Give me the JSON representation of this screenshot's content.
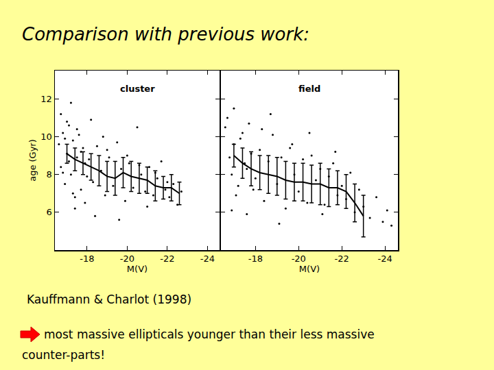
{
  "title": "Comparison with previous work:",
  "citation": "Kauffmann & Charlot (1998)",
  "conclusion": [
    "most massive ellipticals younger than their less massive",
    "counter-parts!"
  ],
  "chart_data": [
    {
      "type": "scatter",
      "title": "cluster",
      "x_label": "M(V)",
      "y_label": "age (Gyr)",
      "xlim": [
        -16.4,
        -24.6
      ],
      "ylim": [
        4,
        13.5
      ],
      "xticks": [
        -18,
        -20,
        -22,
        -24
      ],
      "yticks": [
        6,
        8,
        10,
        12
      ],
      "grid": false,
      "tick_labels": true,
      "series": [
        {
          "type": "scatter",
          "marker": "dot",
          "color": "#000000",
          "x": [
            -16.6,
            -16.7,
            -16.8,
            -16.9,
            -17.0,
            -17.1,
            -17.2,
            -17.3,
            -17.4,
            -17.5,
            -17.6,
            -17.7,
            -17.8,
            -17.9,
            -18.0,
            -16.7,
            -16.9,
            -17.1,
            -17.3,
            -17.5,
            -17.7,
            -17.9,
            -18.1,
            -18.3,
            -18.5,
            -18.7,
            -18.9,
            -19.1,
            -19.3,
            -19.5,
            -19.7,
            -19.9,
            -20.1,
            -20.3,
            -20.5,
            -20.7,
            -20.9,
            -21.1,
            -21.3,
            -21.5,
            -21.7,
            -21.9,
            -22.1,
            -22.3,
            -22.5,
            -22.7,
            -17.2,
            -18.2,
            -19.0,
            -19.6,
            -20.0,
            -20.6,
            -21.0,
            -21.4,
            -22.0,
            -17.4,
            -18.4,
            -18.8,
            -16.8,
            -17.0
          ],
          "values": [
            9.6,
            8.4,
            10.2,
            7.5,
            9.1,
            10.6,
            8.0,
            9.8,
            6.8,
            8.9,
            10.1,
            7.2,
            9.4,
            8.6,
            7.9,
            11.2,
            9.9,
            8.7,
            7.0,
            10.4,
            9.2,
            6.5,
            8.8,
            7.6,
            9.5,
            8.2,
            6.9,
            8.9,
            7.4,
            9.7,
            8.3,
            6.6,
            8.6,
            7.3,
            10.5,
            8.0,
            7.1,
            8.4,
            6.9,
            7.8,
            8.7,
            7.2,
            6.8,
            7.5,
            6.4,
            7.1,
            11.8,
            10.9,
            9.3,
            5.6,
            9.0,
            8.5,
            6.3,
            8.1,
            7.6,
            6.2,
            5.8,
            10.0,
            8.1,
            10.8
          ]
        },
        {
          "type": "line",
          "marker": "none",
          "line_style": "solid",
          "color": "#000000",
          "x": [
            -17.0,
            -17.4,
            -17.8,
            -18.2,
            -18.6,
            -19.0,
            -19.4,
            -19.8,
            -20.2,
            -20.6,
            -21.0,
            -21.4,
            -21.8,
            -22.2,
            -22.6
          ],
          "values": [
            9.1,
            8.8,
            8.6,
            8.4,
            8.2,
            7.9,
            7.8,
            8.1,
            7.9,
            7.8,
            7.7,
            7.4,
            7.3,
            7.3,
            7.0
          ],
          "error": [
            0.5,
            0.6,
            0.6,
            0.7,
            0.8,
            0.8,
            0.9,
            0.8,
            0.8,
            0.8,
            0.7,
            0.8,
            0.6,
            0.7,
            0.6
          ]
        }
      ]
    },
    {
      "type": "scatter",
      "title": "field",
      "x_label": "M(V)",
      "xlim": [
        -16.4,
        -24.6
      ],
      "ylim": [
        4,
        13.5
      ],
      "xticks": [
        -18,
        -20,
        -22,
        -24
      ],
      "yticks": [
        6,
        8,
        10,
        12
      ],
      "grid": false,
      "tick_labels": "x",
      "series": [
        {
          "type": "scatter",
          "marker": "dot",
          "color": "#000000",
          "x": [
            -16.6,
            -16.8,
            -17.0,
            -17.2,
            -17.4,
            -17.6,
            -17.8,
            -18.0,
            -16.7,
            -16.9,
            -17.1,
            -17.3,
            -17.5,
            -17.7,
            -17.9,
            -18.2,
            -18.4,
            -18.6,
            -18.8,
            -19.0,
            -19.2,
            -19.4,
            -19.6,
            -19.8,
            -20.0,
            -20.2,
            -20.4,
            -20.6,
            -20.8,
            -21.0,
            -21.2,
            -21.4,
            -21.6,
            -21.8,
            -22.0,
            -22.2,
            -22.4,
            -22.6,
            -22.8,
            -23.0,
            -23.3,
            -23.6,
            -23.9,
            -24.1,
            -24.3,
            -17.0,
            -17.6,
            -18.3,
            -19.1,
            -19.7,
            -20.5,
            -21.1,
            -21.7,
            -16.9,
            -18.7
          ],
          "values": [
            10.5,
            8.9,
            9.6,
            7.4,
            10.2,
            8.3,
            9.1,
            7.8,
            11.0,
            8.0,
            6.9,
            9.9,
            8.6,
            10.7,
            7.2,
            9.3,
            6.6,
            8.7,
            10.1,
            7.5,
            8.9,
            6.2,
            9.4,
            8.0,
            7.1,
            8.8,
            6.5,
            9.0,
            7.7,
            8.3,
            6.4,
            7.9,
            8.6,
            6.9,
            7.4,
            6.7,
            8.1,
            6.0,
            7.2,
            6.3,
            5.7,
            6.8,
            5.5,
            6.1,
            5.3,
            11.5,
            5.9,
            10.4,
            5.4,
            9.6,
            10.2,
            5.9,
            9.2,
            6.1,
            11.2
          ]
        },
        {
          "type": "line",
          "marker": "none",
          "line_style": "solid",
          "color": "#000000",
          "x": [
            -17.0,
            -17.4,
            -17.8,
            -18.2,
            -18.6,
            -19.0,
            -19.4,
            -19.8,
            -20.2,
            -20.6,
            -21.0,
            -21.4,
            -21.8,
            -22.2,
            -22.6,
            -23.0
          ],
          "values": [
            9.0,
            8.6,
            8.3,
            8.1,
            8.0,
            7.9,
            7.7,
            7.6,
            7.6,
            7.5,
            7.5,
            7.3,
            7.3,
            7.1,
            6.5,
            5.8
          ],
          "error": [
            0.6,
            0.8,
            0.9,
            0.9,
            1.0,
            1.0,
            1.0,
            1.0,
            1.0,
            1.0,
            1.1,
            1.0,
            0.9,
            0.9,
            1.0,
            1.1
          ]
        }
      ]
    }
  ]
}
